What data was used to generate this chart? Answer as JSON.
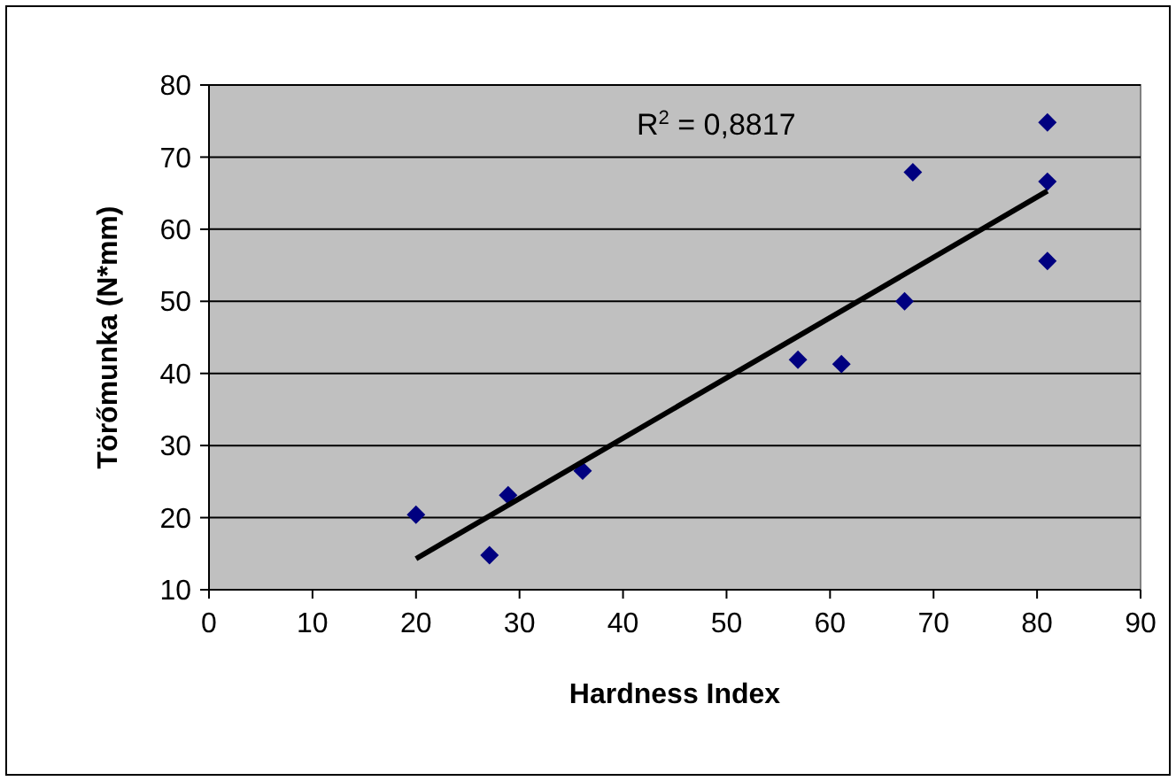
{
  "chart_data": {
    "type": "scatter",
    "xlabel": "Hardness Index",
    "ylabel": "Törőmunka (N*mm)",
    "annotations": [
      "R$^{2}$ = 0,8817"
    ],
    "xlim": [
      0,
      90
    ],
    "xticks": [
      0,
      10,
      20,
      30,
      40,
      50,
      60,
      70,
      80,
      90
    ],
    "ylim": [
      10,
      80
    ],
    "yticks": [
      10,
      20,
      30,
      40,
      50,
      60,
      70,
      80
    ],
    "grid": "y",
    "series": [
      {
        "marker": "diamond",
        "color": "#000080",
        "x": [
          20,
          27.1,
          28.9,
          36.1,
          56.9,
          61.1,
          67.2,
          68,
          81,
          81,
          81
        ],
        "values": [
          20.4,
          14.8,
          23.1,
          26.5,
          41.9,
          41.3,
          50,
          67.9,
          74.8,
          66.6,
          55.6
        ]
      },
      {
        "type": "line",
        "color": "#000000",
        "x": [
          20,
          81
        ],
        "values": [
          14.3,
          65.3
        ]
      }
    ]
  }
}
